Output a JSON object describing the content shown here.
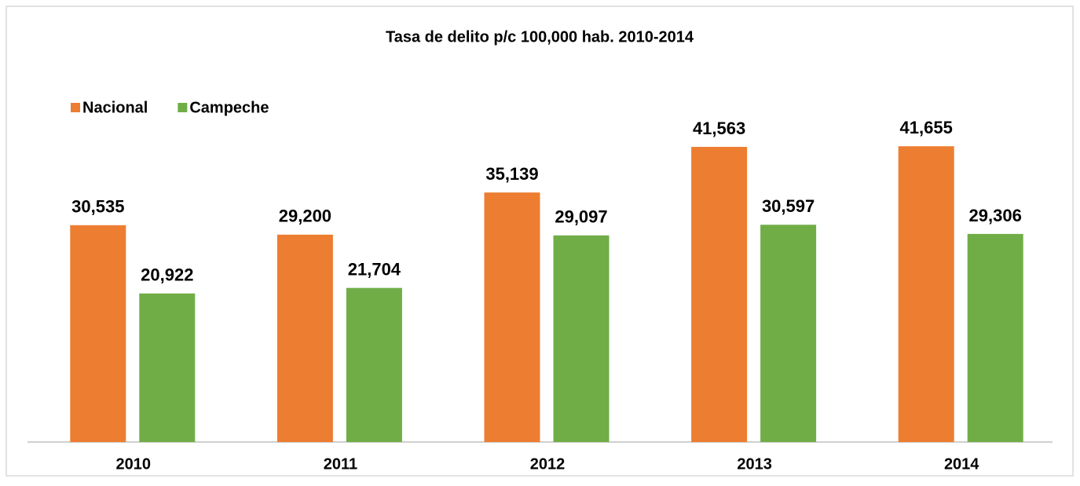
{
  "chart_data": {
    "type": "bar",
    "title": "Tasa de delito p/c 100,000 hab. 2010-2014",
    "categories": [
      "2010",
      "2011",
      "2012",
      "2013",
      "2014"
    ],
    "series": [
      {
        "name": "Nacional",
        "color": "#ed7d31",
        "values": [
          30535,
          29200,
          35139,
          41563,
          41655
        ],
        "value_labels": [
          "30,535",
          "29,200",
          "35,139",
          "41,563",
          "41,655"
        ]
      },
      {
        "name": "Campeche",
        "color": "#70ad47",
        "values": [
          20922,
          21704,
          29097,
          30597,
          29306
        ],
        "value_labels": [
          "20,922",
          "21,704",
          "29,097",
          "30,597",
          "29,306"
        ]
      }
    ],
    "ylim": [
      0,
      45000
    ],
    "legend": "top-left"
  }
}
